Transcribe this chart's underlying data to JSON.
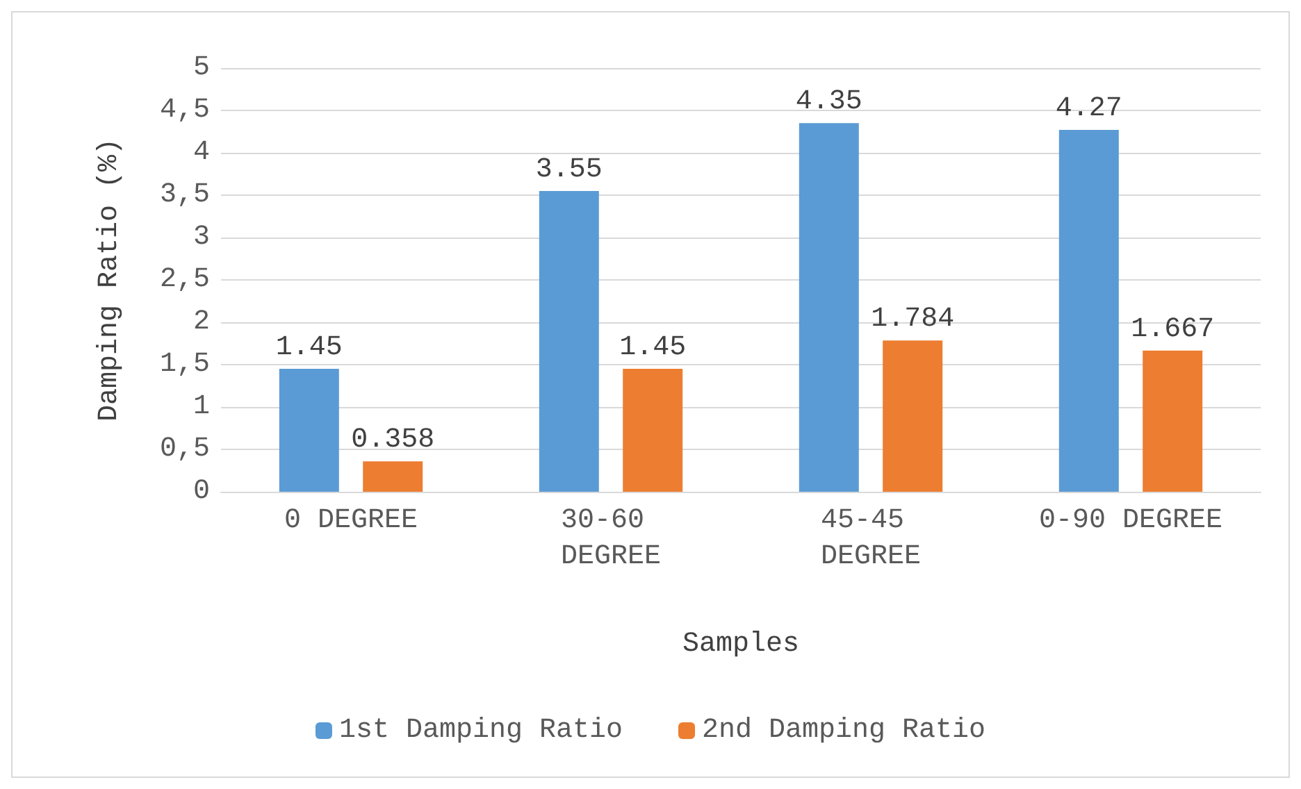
{
  "chart_data": {
    "type": "bar",
    "xlabel": "Samples",
    "ylabel": "Damping Ratio (%)",
    "categories": [
      "0 DEGREE",
      "30-60 DEGREE",
      "45-45 DEGREE",
      "0-90 DEGREE"
    ],
    "series": [
      {
        "name": "1st Damping Ratio",
        "color": "#5b9bd5",
        "values": [
          1.45,
          3.55,
          4.35,
          4.27
        ]
      },
      {
        "name": "2nd Damping Ratio",
        "color": "#ed7d31",
        "values": [
          0.358,
          1.45,
          1.784,
          1.667
        ]
      }
    ],
    "ylim": [
      0,
      5
    ],
    "yticks": [
      0,
      {
        "value": 0.5,
        "label": "0,5"
      },
      1,
      {
        "value": 1.5,
        "label": "1,5"
      },
      2,
      {
        "value": 2.5,
        "label": "2,5"
      },
      3,
      {
        "value": 3.5,
        "label": "3,5"
      },
      4,
      {
        "value": 4.5,
        "label": "4,5"
      },
      5
    ],
    "grid": "y",
    "legend": "bottom",
    "data_labels": true
  }
}
